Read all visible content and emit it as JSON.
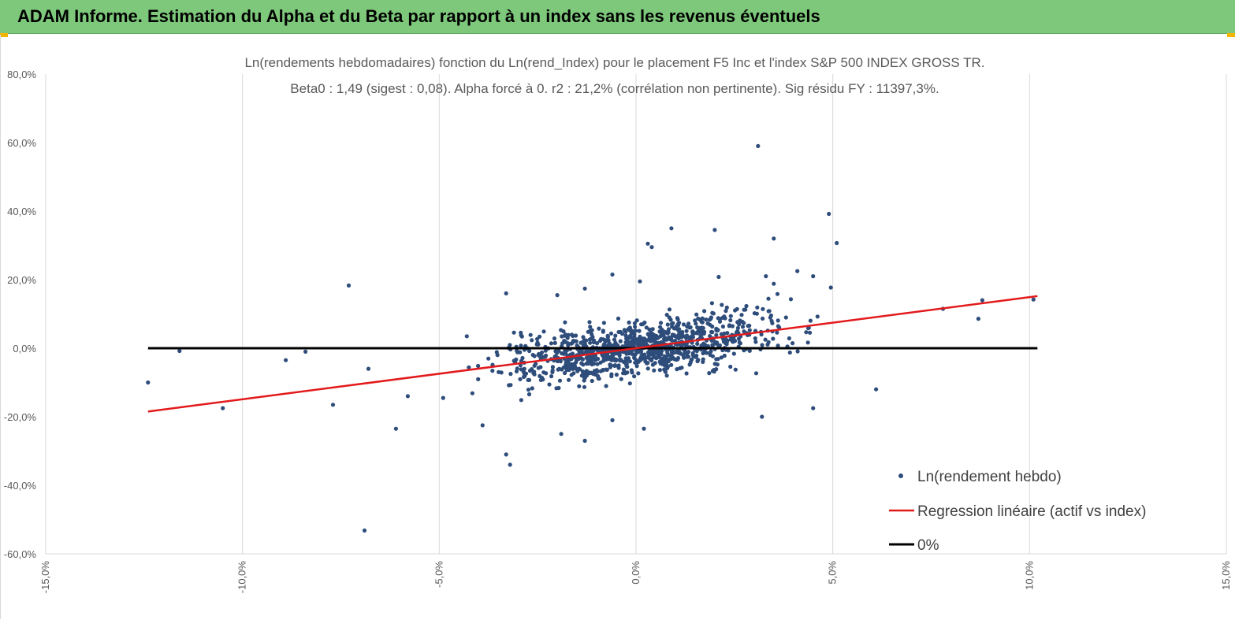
{
  "banner": {
    "title": "ADAM Informe. Estimation du Alpha et du Beta par rapport à un index sans les revenus éventuels"
  },
  "chart_data": {
    "type": "scatter",
    "title_line1": "Ln(rendements hebdomadaires) fonction du Ln(rend_Index) pour le placement F5 Inc et l'index S&P 500 INDEX GROSS TR.",
    "title_line2": "Beta0 : 1,49 (sigest : 0,08). Alpha forcé à 0. r2 : 21,2% (corrélation non pertinente). Sig résidu FY : 11397,3%.",
    "xlim": [
      -15,
      15
    ],
    "ylim": [
      -60,
      80
    ],
    "xticks": [
      -15,
      -10,
      -5,
      0,
      5,
      10,
      15
    ],
    "yticks": [
      -60,
      -40,
      -20,
      0,
      20,
      40,
      60,
      80
    ],
    "xtick_labels": [
      "-15,0%",
      "-10,0%",
      "-5,0%",
      "0,0%",
      "5,0%",
      "10,0%",
      "15,0%"
    ],
    "ytick_labels": [
      "-60,0%",
      "-40,0%",
      "-20,0%",
      "0,0%",
      "20,0%",
      "40,0%",
      "60,0%",
      "80,0%"
    ],
    "series": [
      {
        "name": "Ln(rendement hebdo)",
        "kind": "scatter",
        "color": "#2e4d7b",
        "outliers": [
          [
            -12.4,
            -10
          ],
          [
            -11.6,
            -0.8
          ],
          [
            -10.5,
            -17.5
          ],
          [
            -8.9,
            -3.5
          ],
          [
            -8.4,
            -1
          ],
          [
            -7.7,
            -16.5
          ],
          [
            -7.3,
            18.3
          ],
          [
            -6.9,
            -53.2
          ],
          [
            -6.8,
            -6
          ],
          [
            -6.1,
            -23.5
          ],
          [
            -5.8,
            -14
          ],
          [
            -4.9,
            -14.5
          ],
          [
            -4.3,
            3.5
          ],
          [
            -3.9,
            -22.5
          ],
          [
            -3.3,
            16
          ],
          [
            -3.3,
            -31
          ],
          [
            -3.2,
            -34
          ],
          [
            -2.6,
            -7
          ],
          [
            -2.0,
            15.5
          ],
          [
            -1.9,
            -25
          ],
          [
            -1.3,
            -27
          ],
          [
            -1.3,
            17.4
          ],
          [
            -0.6,
            21.5
          ],
          [
            -0.6,
            -21
          ],
          [
            0.2,
            -23.5
          ],
          [
            0.3,
            30.5
          ],
          [
            0.4,
            29.5
          ],
          [
            0.9,
            35
          ],
          [
            2.0,
            34.5
          ],
          [
            3.1,
            59
          ],
          [
            3.2,
            -20
          ],
          [
            3.5,
            32
          ],
          [
            4.1,
            22.5
          ],
          [
            4.5,
            -17.5
          ],
          [
            4.9,
            39.2
          ],
          [
            5.1,
            30.7
          ],
          [
            6.1,
            -12
          ],
          [
            7.8,
            11.5
          ],
          [
            8.7,
            8.6
          ],
          [
            8.8,
            14
          ],
          [
            10.1,
            14.2
          ],
          [
            4.95,
            17.7
          ],
          [
            3.3,
            21
          ],
          [
            3.5,
            18.8
          ],
          [
            4.5,
            21
          ],
          [
            0.1,
            19.5
          ],
          [
            2.1,
            20.8
          ]
        ],
        "cloud": {
          "n": 1100,
          "x_mean": 0.2,
          "x_sd": 1.65,
          "slope": 1.49,
          "resid_sd": 4.6,
          "seed": 7
        }
      },
      {
        "name": "Regression linéaire (actif vs index)",
        "kind": "line",
        "color": "#e31a1c",
        "slope": 1.49,
        "intercept": 0,
        "x_range": [
          -12.4,
          10.2
        ]
      },
      {
        "name": "0%",
        "kind": "line",
        "color": "#000000",
        "y": 0,
        "x_range": [
          -12.4,
          10.2
        ]
      }
    ],
    "legend_position": "bottom-right",
    "grid": "vertical"
  }
}
